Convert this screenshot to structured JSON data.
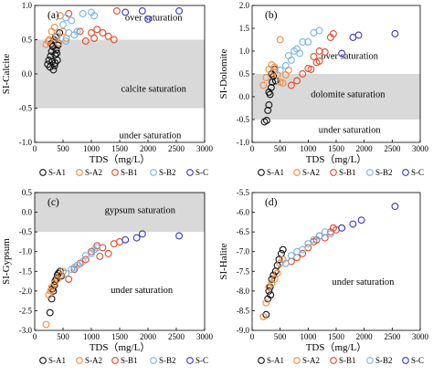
{
  "colors": {
    "S-A1": "#111111",
    "S-A2": "#f08a3e",
    "S-B1": "#e0492b",
    "S-B2": "#7ab4df",
    "S-C": "#3c36c8",
    "band": "#d9d9d9"
  },
  "chart_data": [
    {
      "type": "scatter",
      "panel_label": "(a)",
      "xlabel": "TDS（mg/L）",
      "ylabel": "SI-Calcite",
      "xlim": [
        0,
        3000
      ],
      "ylim": [
        -1.0,
        1.0
      ],
      "xticks": [
        "0",
        "500",
        "1000",
        "1500",
        "2000",
        "2500",
        "3000"
      ],
      "yticks": [
        "-1.0",
        "-0.5",
        "0.0",
        "0.5",
        "1.0"
      ],
      "band": [
        -0.5,
        0.5
      ],
      "annotations": [
        "over saturation",
        "calcite saturation",
        "under saturation"
      ],
      "legend": [
        "S-A1",
        "S-A2",
        "S-B1",
        "S-B2",
        "S-C"
      ],
      "series": [
        {
          "name": "S-A1",
          "points": [
            [
              230,
              0.14
            ],
            [
              250,
              0.2
            ],
            [
              270,
              0.1
            ],
            [
              280,
              0.26
            ],
            [
              300,
              0.33
            ],
            [
              310,
              0.18
            ],
            [
              320,
              0.4
            ],
            [
              340,
              0.5
            ],
            [
              350,
              0.12
            ],
            [
              360,
              0.28
            ],
            [
              370,
              0.54
            ],
            [
              380,
              0.35
            ],
            [
              400,
              0.2
            ],
            [
              420,
              0.45
            ],
            [
              440,
              0.6
            ],
            [
              290,
              0.44
            ],
            [
              330,
              0.06
            ],
            [
              390,
              0.3
            ],
            [
              410,
              0.42
            ],
            [
              360,
              0.16
            ]
          ]
        },
        {
          "name": "S-A2",
          "points": [
            [
              200,
              0.43
            ],
            [
              240,
              0.48
            ],
            [
              260,
              0.5
            ],
            [
              300,
              0.62
            ],
            [
              350,
              0.68
            ],
            [
              380,
              0.55
            ],
            [
              420,
              0.45
            ],
            [
              500,
              0.62
            ],
            [
              560,
              0.52
            ],
            [
              450,
              0.85
            ]
          ]
        },
        {
          "name": "S-B1",
          "points": [
            [
              600,
              0.88
            ],
            [
              800,
              0.62
            ],
            [
              900,
              0.48
            ],
            [
              1000,
              0.6
            ],
            [
              1050,
              0.52
            ],
            [
              1100,
              0.65
            ],
            [
              1200,
              0.6
            ],
            [
              1300,
              0.55
            ],
            [
              1400,
              0.5
            ],
            [
              1450,
              0.92
            ]
          ]
        },
        {
          "name": "S-B2",
          "points": [
            [
              400,
              0.55
            ],
            [
              500,
              0.72
            ],
            [
              550,
              0.48
            ],
            [
              600,
              0.6
            ],
            [
              650,
              0.78
            ],
            [
              700,
              0.57
            ],
            [
              750,
              0.62
            ],
            [
              850,
              0.88
            ],
            [
              1000,
              0.9
            ],
            [
              1050,
              0.85
            ],
            [
              550,
              0.82
            ]
          ]
        },
        {
          "name": "S-C",
          "points": [
            [
              1600,
              0.9
            ],
            [
              1900,
              0.92
            ],
            [
              2000,
              0.8
            ],
            [
              2550,
              0.92
            ]
          ]
        }
      ]
    },
    {
      "type": "scatter",
      "panel_label": "(b)",
      "xlabel": "TDS（mg/L）",
      "ylabel": "SI-Dolomite",
      "xlim": [
        0,
        3000
      ],
      "ylim": [
        -1.0,
        2.0
      ],
      "xticks": [
        "0",
        "500",
        "1000",
        "1500",
        "2000",
        "2500",
        "3000"
      ],
      "yticks": [
        "-1.0",
        "-0.5",
        "0.0",
        "0.5",
        "1.0",
        "1.5",
        "2.0"
      ],
      "band": [
        -0.5,
        0.5
      ],
      "annotations": [
        "over saturation",
        "dolomite saturation",
        "under saturation"
      ],
      "legend": [
        "S-A1",
        "S-A2",
        "S-B1",
        "S-B2",
        "S-C"
      ],
      "series": [
        {
          "name": "S-A1",
          "points": [
            [
              220,
              -0.55
            ],
            [
              260,
              -0.52
            ],
            [
              280,
              -0.3
            ],
            [
              300,
              -0.18
            ],
            [
              320,
              0.05
            ],
            [
              340,
              0.2
            ],
            [
              360,
              0.32
            ],
            [
              380,
              0.45
            ],
            [
              400,
              0.6
            ],
            [
              420,
              0.35
            ],
            [
              300,
              0.1
            ],
            [
              350,
              0.5
            ]
          ]
        },
        {
          "name": "S-A2",
          "points": [
            [
              200,
              0.25
            ],
            [
              250,
              0.42
            ],
            [
              300,
              0.6
            ],
            [
              350,
              0.7
            ],
            [
              400,
              0.55
            ],
            [
              450,
              0.48
            ],
            [
              500,
              0.32
            ],
            [
              550,
              0.3
            ],
            [
              600,
              0.48
            ],
            [
              650,
              0.58
            ],
            [
              500,
              1.25
            ],
            [
              400,
              0.65
            ]
          ]
        },
        {
          "name": "S-B1",
          "points": [
            [
              700,
              0.25
            ],
            [
              800,
              0.35
            ],
            [
              900,
              0.5
            ],
            [
              1000,
              0.62
            ],
            [
              1050,
              0.6
            ],
            [
              1100,
              0.88
            ],
            [
              1150,
              0.75
            ],
            [
              1200,
              1.0
            ],
            [
              1300,
              0.98
            ],
            [
              1400,
              1.3
            ],
            [
              1450,
              1.38
            ],
            [
              1200,
              0.78
            ]
          ]
        },
        {
          "name": "S-B2",
          "points": [
            [
              500,
              0.58
            ],
            [
              600,
              0.68
            ],
            [
              650,
              0.9
            ],
            [
              700,
              0.8
            ],
            [
              750,
              1.0
            ],
            [
              800,
              1.05
            ],
            [
              850,
              0.95
            ],
            [
              900,
              1.2
            ],
            [
              1000,
              1.2
            ],
            [
              1100,
              1.4
            ],
            [
              1200,
              1.45
            ]
          ]
        },
        {
          "name": "S-C",
          "points": [
            [
              1600,
              0.95
            ],
            [
              1800,
              1.3
            ],
            [
              1900,
              1.35
            ],
            [
              2550,
              1.38
            ]
          ]
        }
      ]
    },
    {
      "type": "scatter",
      "panel_label": "(c)",
      "xlabel": "TDS（mg/L）",
      "ylabel": "SI-Gypsum",
      "xlim": [
        0,
        3000
      ],
      "ylim": [
        -3.0,
        0.5
      ],
      "xticks": [
        "0",
        "500",
        "1000",
        "1500",
        "2000",
        "2500",
        "3000"
      ],
      "yticks": [
        "-3.0",
        "-2.5",
        "-2.0",
        "-1.5",
        "-1.0",
        "-0.5",
        "0.0",
        "0.5"
      ],
      "band": [
        -0.5,
        0.5
      ],
      "annotations": [
        "gypsum saturation",
        "under saturation"
      ],
      "legend": [
        "S-A1",
        "S-A2",
        "S-B1",
        "S-B2",
        "S-C"
      ],
      "series": [
        {
          "name": "S-A1",
          "points": [
            [
              270,
              -2.55
            ],
            [
              300,
              -2.2
            ],
            [
              330,
              -2.0
            ],
            [
              350,
              -1.85
            ],
            [
              380,
              -1.7
            ],
            [
              400,
              -1.6
            ],
            [
              420,
              -1.55
            ],
            [
              450,
              -1.5
            ],
            [
              470,
              -1.62
            ],
            [
              360,
              -1.75
            ],
            [
              310,
              -1.95
            ]
          ]
        },
        {
          "name": "S-A2",
          "points": [
            [
              200,
              -2.85
            ],
            [
              250,
              -2.1
            ],
            [
              280,
              -2.0
            ],
            [
              300,
              -1.9
            ],
            [
              350,
              -1.8
            ],
            [
              400,
              -1.7
            ],
            [
              450,
              -1.6
            ],
            [
              500,
              -1.5
            ]
          ]
        },
        {
          "name": "S-B1",
          "points": [
            [
              600,
              -1.7
            ],
            [
              700,
              -1.45
            ],
            [
              800,
              -1.3
            ],
            [
              900,
              -1.2
            ],
            [
              1000,
              -1.0
            ],
            [
              1100,
              -0.85
            ],
            [
              1200,
              -0.9
            ],
            [
              1300,
              -1.05
            ],
            [
              1400,
              -0.8
            ],
            [
              1500,
              -0.75
            ],
            [
              1150,
              -1.12
            ]
          ]
        },
        {
          "name": "S-B2",
          "points": [
            [
              550,
              -1.55
            ],
            [
              650,
              -1.45
            ],
            [
              700,
              -1.4
            ],
            [
              750,
              -1.35
            ],
            [
              850,
              -1.25
            ],
            [
              900,
              -1.1
            ],
            [
              1000,
              -1.05
            ],
            [
              1050,
              -0.95
            ],
            [
              1100,
              -0.9
            ]
          ]
        },
        {
          "name": "S-C",
          "points": [
            [
              1600,
              -0.7
            ],
            [
              1800,
              -0.65
            ],
            [
              1900,
              -0.55
            ],
            [
              2550,
              -0.6
            ]
          ]
        }
      ]
    },
    {
      "type": "scatter",
      "panel_label": "(d)",
      "xlabel": "TDS（mg/L）",
      "ylabel": "SI-Halite",
      "xlim": [
        0,
        3000
      ],
      "ylim": [
        -9.0,
        -5.5
      ],
      "xticks": [
        "0",
        "500",
        "1000",
        "1500",
        "2000",
        "2500",
        "3000"
      ],
      "yticks": [
        "-9.0",
        "-8.5",
        "-8.0",
        "-7.5",
        "-7.0",
        "-6.5",
        "-6.0",
        "-5.5"
      ],
      "annotations": [
        "under saturation"
      ],
      "legend": [
        "S-A1",
        "S-A2",
        "S-B1",
        "S-B2",
        "S-C"
      ],
      "series": [
        {
          "name": "S-A1",
          "points": [
            [
              250,
              -8.6
            ],
            [
              280,
              -8.2
            ],
            [
              300,
              -8.0
            ],
            [
              320,
              -7.9
            ],
            [
              350,
              -7.7
            ],
            [
              380,
              -7.6
            ],
            [
              420,
              -7.5
            ],
            [
              450,
              -7.35
            ],
            [
              480,
              -7.2
            ],
            [
              520,
              -7.05
            ],
            [
              550,
              -6.95
            ],
            [
              330,
              -8.1
            ]
          ]
        },
        {
          "name": "S-A2",
          "points": [
            [
              200,
              -8.65
            ],
            [
              250,
              -8.3
            ],
            [
              300,
              -7.9
            ],
            [
              350,
              -7.8
            ],
            [
              400,
              -7.7
            ],
            [
              450,
              -7.55
            ],
            [
              500,
              -7.3
            ],
            [
              550,
              -7.2
            ],
            [
              600,
              -7.3
            ]
          ]
        },
        {
          "name": "S-B1",
          "points": [
            [
              700,
              -7.25
            ],
            [
              800,
              -7.15
            ],
            [
              900,
              -7.05
            ],
            [
              1000,
              -6.9
            ],
            [
              1100,
              -6.75
            ],
            [
              1200,
              -6.6
            ],
            [
              1300,
              -6.65
            ],
            [
              1400,
              -6.5
            ],
            [
              1450,
              -6.4
            ],
            [
              1500,
              -6.45
            ],
            [
              1150,
              -6.7
            ]
          ]
        },
        {
          "name": "S-B2",
          "points": [
            [
              600,
              -7.3
            ],
            [
              700,
              -7.1
            ],
            [
              800,
              -7.0
            ],
            [
              900,
              -6.95
            ],
            [
              1000,
              -6.8
            ],
            [
              1100,
              -6.7
            ],
            [
              1200,
              -6.6
            ],
            [
              1300,
              -6.5
            ],
            [
              1400,
              -6.55
            ]
          ]
        },
        {
          "name": "S-C",
          "points": [
            [
              1600,
              -6.4
            ],
            [
              1800,
              -6.3
            ],
            [
              1950,
              -6.2
            ],
            [
              2550,
              -5.85
            ]
          ]
        }
      ]
    }
  ]
}
